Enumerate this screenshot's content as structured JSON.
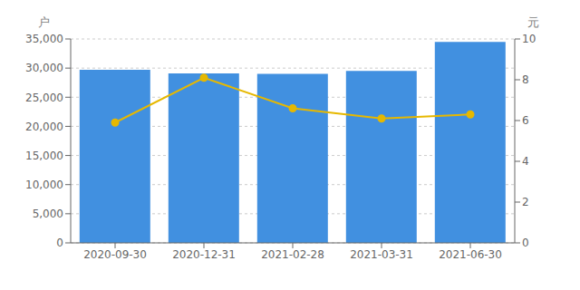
{
  "chart_data": {
    "type": "bar",
    "categories": [
      "2020-09-30",
      "2020-12-31",
      "2021-02-28",
      "2021-03-31",
      "2021-06-30"
    ],
    "series": [
      {
        "type": "bar",
        "color": "#4190e0",
        "values": [
          29700,
          29100,
          29000,
          29500,
          34500
        ]
      },
      {
        "type": "line",
        "color": "#e6b800",
        "marker": "circle",
        "axis": "y2",
        "values": [
          5.9,
          8.1,
          6.6,
          6.1,
          6.3
        ]
      }
    ],
    "ylabel": "户",
    "y2label": "元",
    "ylim": [
      0,
      35000
    ],
    "yticks": [
      0,
      {
        "value": 5000,
        "label": "5,000"
      },
      {
        "value": 10000,
        "label": "10,000"
      },
      {
        "value": 15000,
        "label": "15,000"
      },
      {
        "value": 20000,
        "label": "20,000"
      },
      {
        "value": 25000,
        "label": "25,000"
      },
      {
        "value": 30000,
        "label": "30,000"
      },
      {
        "value": 35000,
        "label": "35,000"
      }
    ],
    "y2lim": [
      0,
      10
    ],
    "y2ticks": [
      0,
      2,
      4,
      6,
      8,
      10
    ],
    "grid": true
  }
}
